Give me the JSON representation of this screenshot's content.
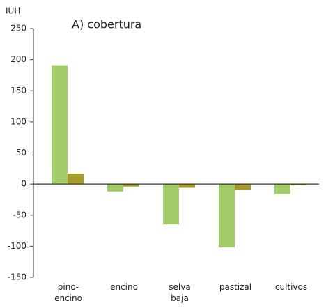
{
  "chart_data": {
    "type": "bar",
    "title": "A) cobertura",
    "y_label": "IUH",
    "categories": [
      "pino-\nencino",
      "encino",
      "selva\nbaja",
      "pastizal",
      "cultivos"
    ],
    "series": [
      {
        "color": "#a5cc6b",
        "values": [
          191,
          -12,
          -65,
          -102,
          -16
        ]
      },
      {
        "color": "#a89a2a",
        "values": [
          17,
          -4,
          -6,
          -9,
          -2
        ]
      }
    ],
    "ylim": [
      -150,
      250
    ],
    "yticks": [
      -150,
      -100,
      -50,
      0,
      50,
      100,
      150,
      200,
      250
    ]
  }
}
